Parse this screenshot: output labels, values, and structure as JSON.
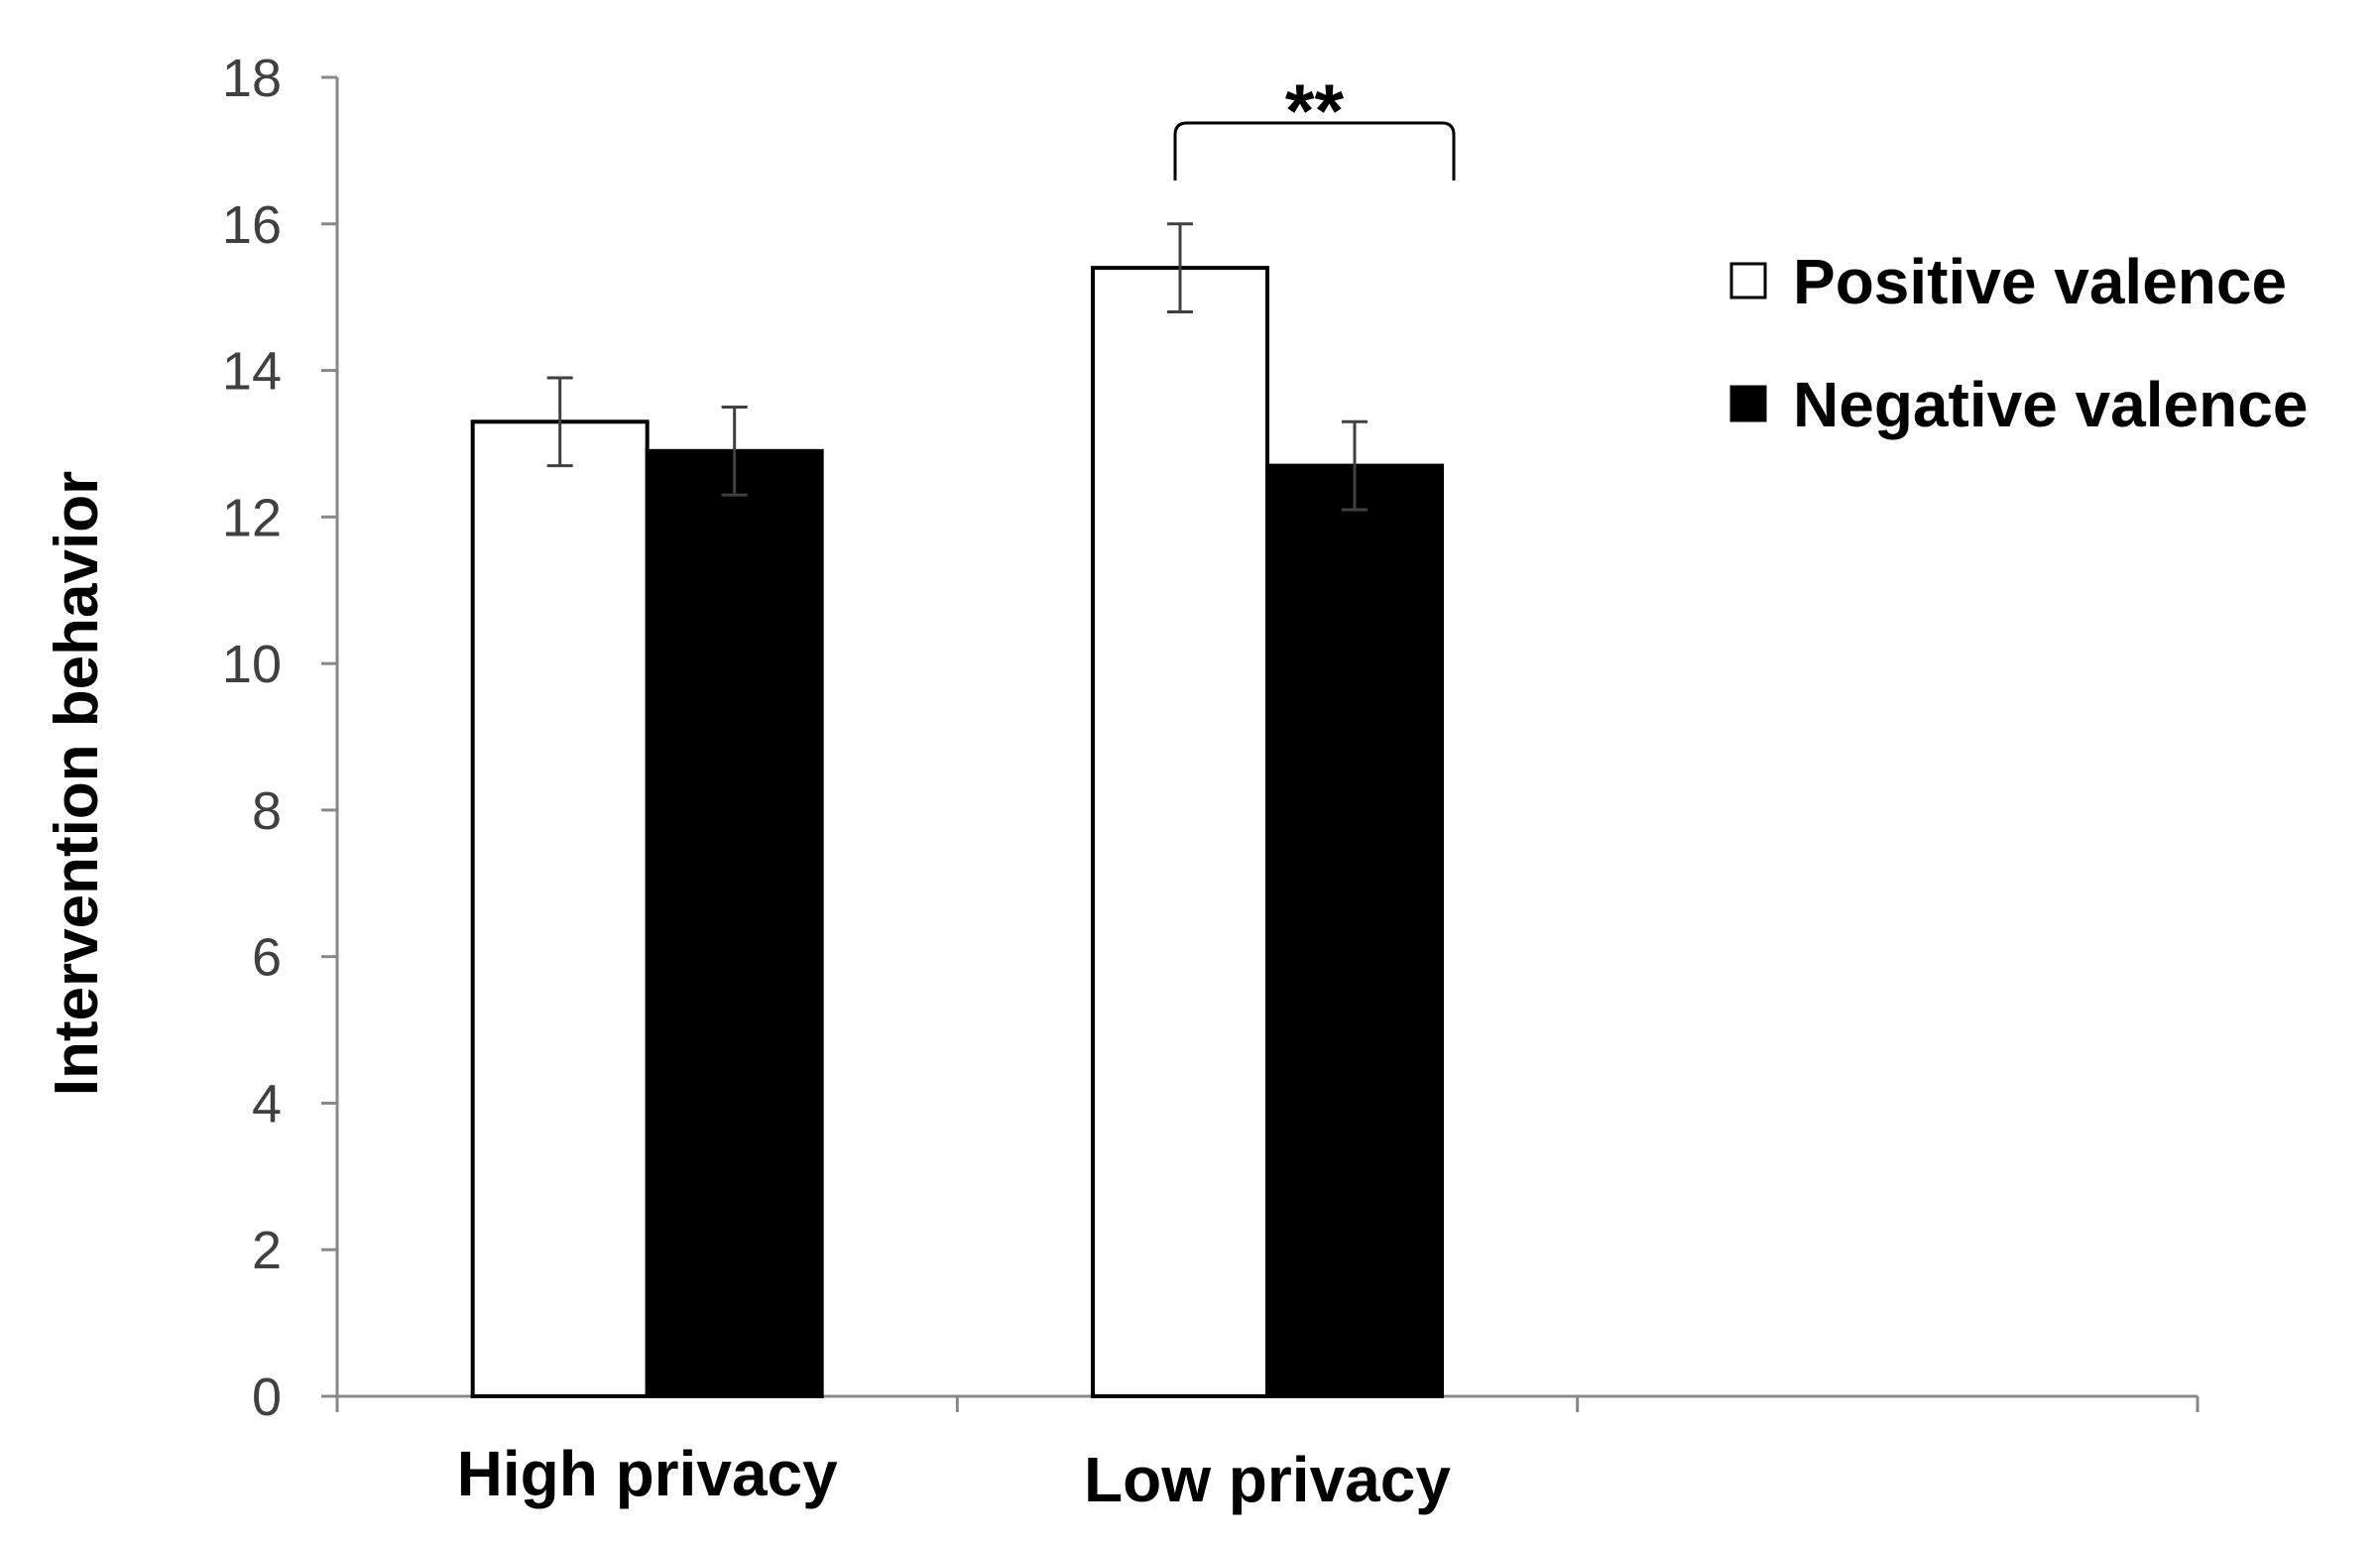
{
  "chart_data": {
    "type": "bar",
    "ylabel": "Intervention behavior",
    "xlabel": "",
    "ylim": [
      0,
      18
    ],
    "yticks": [
      0,
      2,
      4,
      6,
      8,
      10,
      12,
      14,
      16,
      18
    ],
    "categories": [
      "High privacy",
      "Low privacy",
      ""
    ],
    "series": [
      {
        "name": "Positive valence",
        "values": [
          13.3,
          15.4,
          null
        ],
        "errors": [
          0.6,
          0.6,
          null
        ],
        "color": "#ffffff"
      },
      {
        "name": "Negative valence",
        "values": [
          12.9,
          12.7,
          null
        ],
        "errors": [
          0.6,
          0.6,
          null
        ],
        "color": "#000000"
      }
    ],
    "annotations": [
      {
        "text": "**",
        "between": "Low privacy"
      }
    ],
    "legend_position": "top-right",
    "grid": false
  }
}
